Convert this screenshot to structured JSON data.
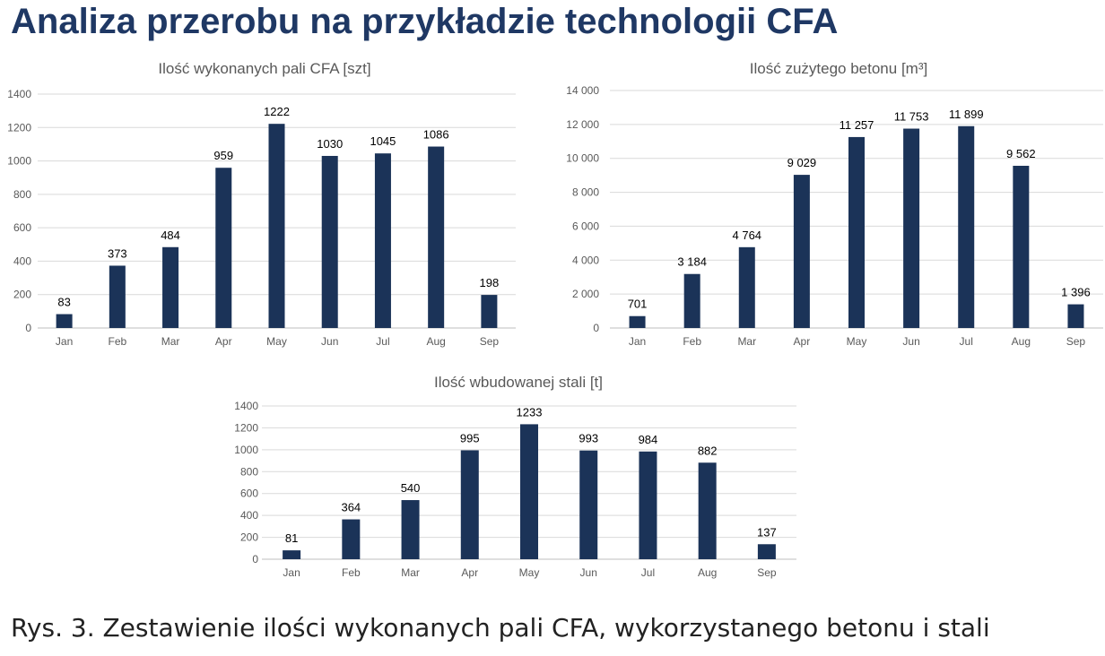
{
  "page": {
    "title": "Analiza przerobu na przykładzie technologii CFA",
    "caption": "Rys. 3. Zestawienie ilości wykonanych pali CFA, wykorzystanego betonu i stali"
  },
  "colors": {
    "bar": "#1b3358",
    "title": "#1f3864"
  },
  "chart_data": [
    {
      "id": "piles",
      "type": "bar",
      "title": "Ilość wykonanych pali CFA [szt]",
      "categories": [
        "Jan",
        "Feb",
        "Mar",
        "Apr",
        "May",
        "Jun",
        "Jul",
        "Aug",
        "Sep"
      ],
      "values": [
        83,
        373,
        484,
        959,
        1222,
        1030,
        1045,
        1086,
        198
      ],
      "value_labels": [
        "83",
        "373",
        "484",
        "959",
        "1222",
        "1030",
        "1045",
        "1086",
        "198"
      ],
      "yticks": [
        0,
        200,
        400,
        600,
        800,
        1000,
        1200,
        1400
      ],
      "ytick_labels": [
        "0",
        "200",
        "400",
        "600",
        "800",
        "1000",
        "1200",
        "1400"
      ],
      "ylim": [
        0,
        1400
      ],
      "grid": true
    },
    {
      "id": "concrete",
      "type": "bar",
      "title": "Ilość zużytego betonu [m³]",
      "categories": [
        "Jan",
        "Feb",
        "Mar",
        "Apr",
        "May",
        "Jun",
        "Jul",
        "Aug",
        "Sep"
      ],
      "values": [
        701,
        3184,
        4764,
        9029,
        11257,
        11753,
        11899,
        9562,
        1396
      ],
      "value_labels": [
        "701",
        "3 184",
        "4 764",
        "9 029",
        "11 257",
        "11 753",
        "11 899",
        "9 562",
        "1 396"
      ],
      "yticks": [
        0,
        2000,
        4000,
        6000,
        8000,
        10000,
        12000,
        14000
      ],
      "ytick_labels": [
        "0",
        "2 000",
        "4 000",
        "6 000",
        "8 000",
        "10 000",
        "12 000",
        "14 000"
      ],
      "ylim": [
        0,
        14000
      ],
      "grid": true
    },
    {
      "id": "steel",
      "type": "bar",
      "title": "Ilość wbudowanej stali [t]",
      "categories": [
        "Jan",
        "Feb",
        "Mar",
        "Apr",
        "May",
        "Jun",
        "Jul",
        "Aug",
        "Sep"
      ],
      "values": [
        81,
        364,
        540,
        995,
        1233,
        993,
        984,
        882,
        137
      ],
      "value_labels": [
        "81",
        "364",
        "540",
        "995",
        "1233",
        "993",
        "984",
        "882",
        "137"
      ],
      "yticks": [
        0,
        200,
        400,
        600,
        800,
        1000,
        1200,
        1400
      ],
      "ytick_labels": [
        "0",
        "200",
        "400",
        "600",
        "800",
        "1000",
        "1200",
        "1400"
      ],
      "ylim": [
        0,
        1400
      ],
      "grid": true
    }
  ]
}
